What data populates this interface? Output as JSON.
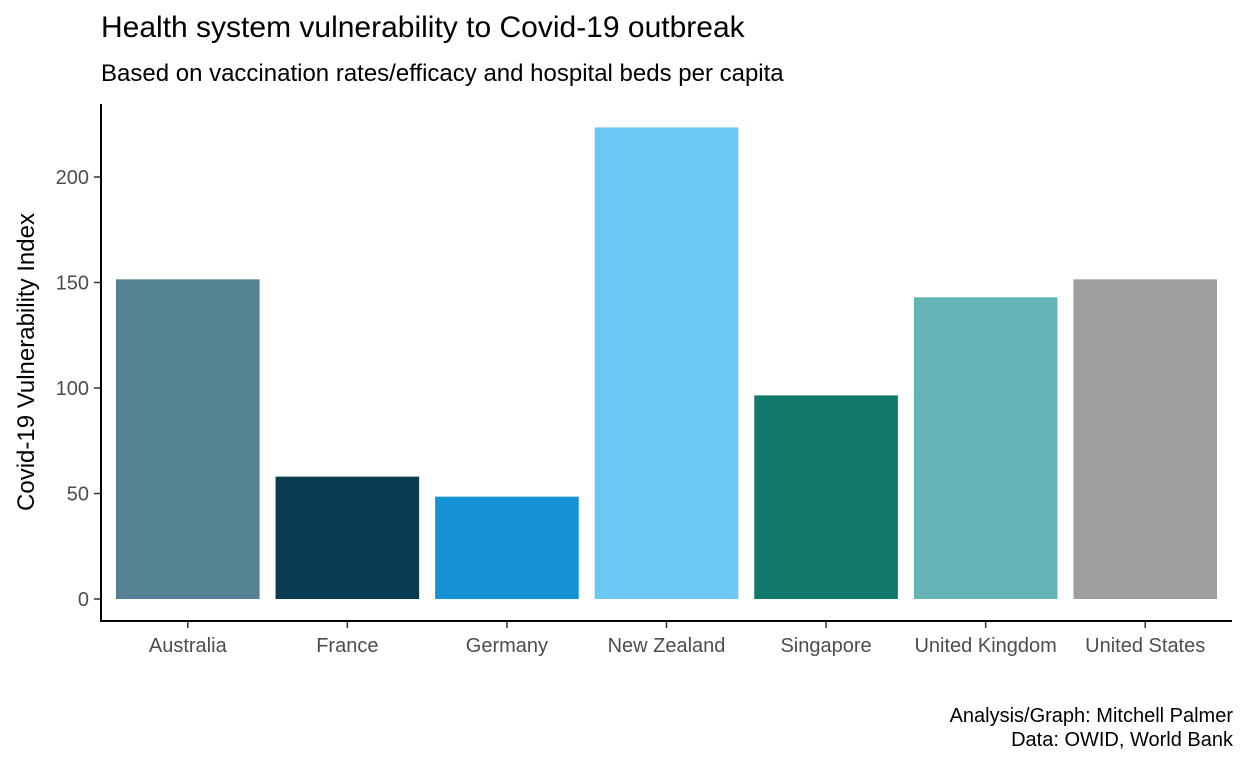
{
  "chart_data": {
    "type": "bar",
    "title": "Health system vulnerability to Covid-19 outbreak",
    "subtitle": "Based on vaccination rates/efficacy and hospital beds per capita",
    "xlabel": "",
    "ylabel": "Covid-19 Vulnerability Index",
    "categories": [
      "Australia",
      "France",
      "Germany",
      "New Zealand",
      "Singapore",
      "United Kingdom",
      "United States"
    ],
    "values": [
      151.5,
      58,
      48.5,
      223.5,
      96.5,
      143,
      151.5
    ],
    "colors": [
      "#548293",
      "#0A3C51",
      "#1592D3",
      "#6CC7F2",
      "#10796B",
      "#63B4B4",
      "#9E9E9E"
    ],
    "ylim": [
      0,
      224
    ],
    "yticks": [
      0,
      50,
      100,
      150,
      200
    ],
    "grid": false,
    "legend": "none"
  },
  "caption": {
    "line1": "Analysis/Graph: Mitchell Palmer",
    "line2": "Data: OWID, World Bank"
  }
}
